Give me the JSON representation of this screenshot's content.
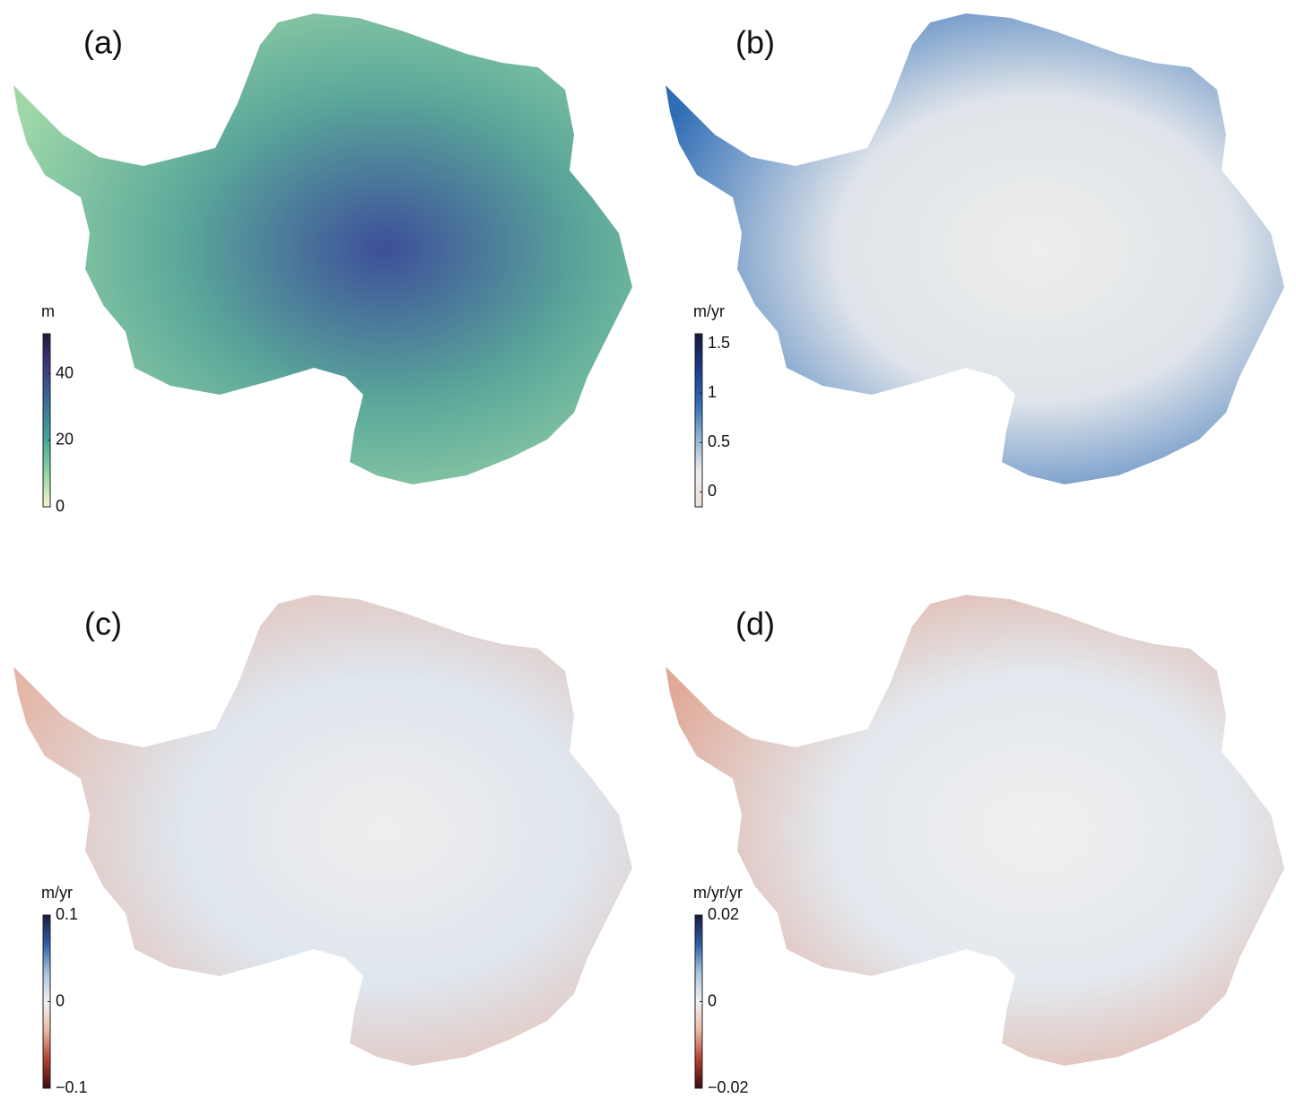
{
  "panels": [
    {
      "label": "(a)",
      "map_colors": [
        "#3d4f9a",
        "#5aa79a",
        "#9fd8a8"
      ],
      "colorbar": {
        "unit": "m",
        "lim": [
          0,
          52
        ],
        "ticks": [
          0,
          20,
          40
        ],
        "colormap": [
          "#f7f7c9",
          "#8fd3a4",
          "#3fa59a",
          "#3a6f9c",
          "#3b3a84",
          "#231b3d"
        ]
      }
    },
    {
      "label": "(b)",
      "map_colors": [
        "#eeeeec",
        "#dfe4ea",
        "#2f6db5"
      ],
      "colorbar": {
        "unit": "m/yr",
        "lim": [
          -0.15,
          1.6
        ],
        "ticks": [
          0,
          0.5,
          1,
          1.5
        ],
        "colormap": [
          "#ecdcd6",
          "#eeeeee",
          "#8fb3d3",
          "#2f6db5",
          "#1c3a8a",
          "#1a1a3d"
        ]
      }
    },
    {
      "label": "(c)",
      "map_colors": [
        "#f0eeee",
        "#dfe6ee",
        "#e4b7a8"
      ],
      "colorbar": {
        "unit": "m/yr",
        "lim": [
          -0.1,
          0.1
        ],
        "ticks": [
          {
            "value": -0.1,
            "label": "−0.1"
          },
          0,
          0.1
        ],
        "colormap": [
          "#3a0a12",
          "#b5402e",
          "#e9b9a5",
          "#f2f2f2",
          "#a9c4dc",
          "#2c5fa8",
          "#1a1a3d"
        ]
      }
    },
    {
      "label": "(d)",
      "map_colors": [
        "#f1efef",
        "#e3e9ef",
        "#e1aa98"
      ],
      "colorbar": {
        "unit": "m/yr/yr",
        "lim": [
          -0.02,
          0.02
        ],
        "ticks": [
          {
            "value": -0.02,
            "label": "−0.02"
          },
          0,
          0.02
        ],
        "colormap": [
          "#3a0a12",
          "#b5402e",
          "#e9b9a5",
          "#f2f2f2",
          "#a9c4dc",
          "#2c5fa8",
          "#1a1a3d"
        ]
      }
    }
  ]
}
